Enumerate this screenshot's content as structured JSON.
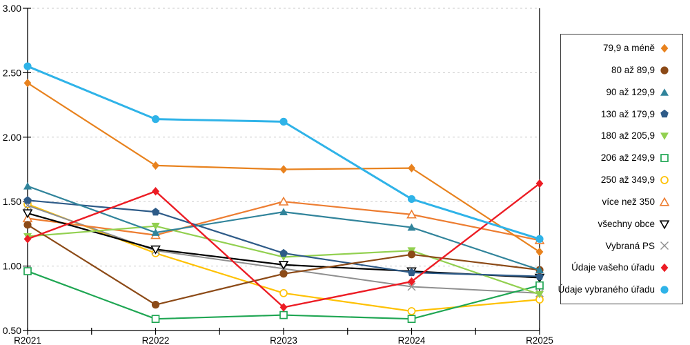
{
  "chart_data": {
    "type": "line",
    "title": "",
    "xlabel": "",
    "ylabel": "",
    "categories": [
      "R2021",
      "R2022",
      "R2023",
      "R2024",
      "R2025"
    ],
    "y_tick_labels": [
      "3.00",
      "2.50",
      "2.00",
      "1.50",
      "1.00",
      "0.50"
    ],
    "ylim": [
      0.5,
      3.0
    ],
    "grid": "horizontal-dashed",
    "gridline_color": "#c9c9c9",
    "axis_color": "#000000",
    "legend_position": "right",
    "series": [
      {
        "name": "79,9 a méně",
        "marker": "diamond-filled",
        "color": "#e8821e",
        "line_width": 2.2,
        "values": [
          2.42,
          1.78,
          1.75,
          1.76,
          1.11
        ]
      },
      {
        "name": "80 až 89,9",
        "marker": "circle-filled",
        "color": "#8c4a17",
        "line_width": 2.2,
        "values": [
          1.32,
          0.7,
          0.94,
          1.09,
          0.97
        ]
      },
      {
        "name": "90 až 129,9",
        "marker": "triangle-up-filled",
        "color": "#31849b",
        "line_width": 2.2,
        "values": [
          1.62,
          1.26,
          1.42,
          1.3,
          0.97
        ]
      },
      {
        "name": "130 až 179,9",
        "marker": "pentagon-filled",
        "color": "#2e5b88",
        "line_width": 2.2,
        "values": [
          1.51,
          1.42,
          1.1,
          0.95,
          0.92
        ]
      },
      {
        "name": "180 až 205,9",
        "marker": "triangle-down-filled",
        "color": "#92d050",
        "line_width": 2.2,
        "values": [
          1.23,
          1.31,
          1.07,
          1.12,
          0.78
        ]
      },
      {
        "name": "206 až 249,9",
        "marker": "square-open",
        "color": "#1fa653",
        "line_width": 2.2,
        "values": [
          0.96,
          0.59,
          0.62,
          0.59,
          0.85
        ]
      },
      {
        "name": "250 až 349,9",
        "marker": "circle-open",
        "color": "#fec103",
        "line_width": 2.2,
        "values": [
          1.48,
          1.1,
          0.79,
          0.65,
          0.74
        ]
      },
      {
        "name": "více než 350",
        "marker": "triangle-up-open",
        "color": "#ed7d31",
        "line_width": 2.2,
        "values": [
          1.37,
          1.24,
          1.5,
          1.4,
          1.2
        ]
      },
      {
        "name": "všechny obce",
        "marker": "triangle-down-open",
        "color": "#000000",
        "line_width": 2.2,
        "values": [
          1.41,
          1.13,
          1.01,
          0.96,
          0.91
        ]
      },
      {
        "name": "Vybraná PS",
        "marker": "x",
        "color": "#8f8f8f",
        "line_width": 2.0,
        "values": [
          1.47,
          1.12,
          0.98,
          0.84,
          0.79
        ]
      },
      {
        "name": "Údaje vašeho úřadu",
        "marker": "diamond-filled",
        "color": "#ec1c24",
        "line_width": 2.4,
        "values": [
          1.21,
          1.58,
          0.68,
          0.88,
          1.64
        ]
      },
      {
        "name": "Údaje vybraného úřadu",
        "marker": "circle-filled",
        "color": "#2fb3e8",
        "line_width": 3.0,
        "values": [
          2.55,
          2.14,
          2.12,
          1.52,
          1.21
        ]
      }
    ]
  }
}
